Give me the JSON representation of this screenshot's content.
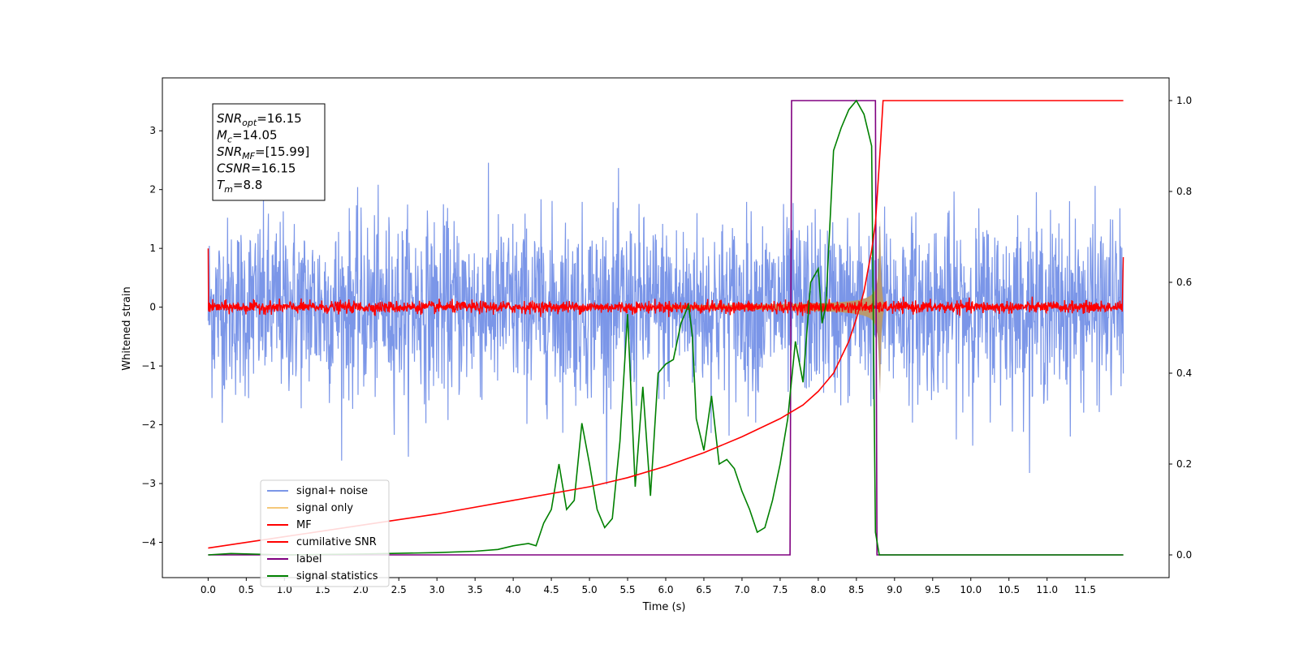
{
  "chart_data": {
    "type": "line",
    "xlabel": "Time (s)",
    "ylabel": "Whitened strain",
    "xlim": [
      -0.6,
      12.6
    ],
    "ylim_left": [
      -4.6,
      3.9
    ],
    "ylim_right": [
      -0.05,
      1.05
    ],
    "xticks": [
      "0.0",
      "0.5",
      "1.0",
      "1.5",
      "2.0",
      "2.5",
      "3.0",
      "3.5",
      "4.0",
      "4.5",
      "5.0",
      "5.5",
      "6.0",
      "6.5",
      "7.0",
      "7.5",
      "8.0",
      "8.5",
      "9.0",
      "9.5",
      "10.0",
      "10.5",
      "11.0",
      "11.5"
    ],
    "yticks_left": [
      "3",
      "2",
      "1",
      "0",
      "−1",
      "−2",
      "−3",
      "−4"
    ],
    "yticks_right": [
      "1.0",
      "0.8",
      "0.6",
      "0.4",
      "0.2",
      "0.0"
    ],
    "legend_placement": "lower-left",
    "annotation": {
      "lines": [
        {
          "sym": "SNR",
          "sub": "opt",
          "val": "=16.15"
        },
        {
          "sym": "M",
          "sub": "c",
          "val": "=14.05"
        },
        {
          "sym": "SNR",
          "sub": "MF",
          "val": "=[15.99]"
        },
        {
          "sym": "CSNR",
          "sub": "",
          "val": "=16.15"
        },
        {
          "sym": "T",
          "sub": "m",
          "val": "=8.8"
        }
      ]
    },
    "series": [
      {
        "name": "signal+ noise",
        "color": "#7b96e8",
        "axis": "left",
        "kind": "noise",
        "noise_std": 0.75,
        "t_range": [
          0,
          12
        ]
      },
      {
        "name": "signal only",
        "color": "#f5c87a",
        "axis": "left",
        "kind": "chirp",
        "merger_time": 8.8,
        "peak_amplitude": 2.7
      },
      {
        "name": "MF",
        "color": "#ff0000",
        "axis": "left",
        "kind": "noise",
        "noise_std": 0.05,
        "edge_values": [
          1.0,
          0.85
        ]
      },
      {
        "name": "cumilative SNR",
        "color": "#ff0000",
        "axis": "right",
        "x": [
          0.0,
          1.0,
          2.0,
          3.0,
          4.0,
          5.0,
          5.5,
          6.0,
          6.5,
          7.0,
          7.5,
          7.8,
          8.0,
          8.2,
          8.4,
          8.5,
          8.6,
          8.7,
          8.75,
          8.8,
          8.85,
          12.0
        ],
        "values": [
          0.015,
          0.04,
          0.065,
          0.09,
          0.12,
          0.15,
          0.17,
          0.195,
          0.225,
          0.26,
          0.3,
          0.33,
          0.36,
          0.4,
          0.47,
          0.52,
          0.58,
          0.67,
          0.73,
          0.86,
          1.0,
          1.0
        ]
      },
      {
        "name": "label",
        "color": "#800080",
        "axis": "right",
        "x": [
          0.0,
          7.63,
          7.65,
          8.75,
          8.77,
          12.0
        ],
        "values": [
          0.0,
          0.0,
          1.0,
          1.0,
          0.0,
          0.0
        ]
      },
      {
        "name": "signal statistics",
        "color": "#008000",
        "axis": "right",
        "x": [
          0.0,
          0.3,
          1.0,
          2.0,
          3.0,
          3.5,
          3.8,
          4.0,
          4.2,
          4.3,
          4.4,
          4.5,
          4.6,
          4.7,
          4.8,
          4.9,
          5.0,
          5.1,
          5.2,
          5.3,
          5.4,
          5.5,
          5.6,
          5.7,
          5.8,
          5.9,
          6.0,
          6.1,
          6.2,
          6.3,
          6.35,
          6.4,
          6.5,
          6.6,
          6.7,
          6.8,
          6.9,
          7.0,
          7.1,
          7.2,
          7.3,
          7.4,
          7.5,
          7.6,
          7.7,
          7.8,
          7.9,
          8.0,
          8.05,
          8.1,
          8.2,
          8.3,
          8.4,
          8.5,
          8.6,
          8.7,
          8.75,
          8.8,
          8.9,
          12.0
        ],
        "values": [
          0.0,
          0.003,
          0.0,
          0.002,
          0.005,
          0.008,
          0.012,
          0.02,
          0.025,
          0.02,
          0.07,
          0.1,
          0.2,
          0.1,
          0.12,
          0.29,
          0.2,
          0.1,
          0.06,
          0.08,
          0.25,
          0.53,
          0.15,
          0.37,
          0.13,
          0.4,
          0.42,
          0.43,
          0.51,
          0.55,
          0.48,
          0.3,
          0.23,
          0.35,
          0.2,
          0.21,
          0.19,
          0.14,
          0.1,
          0.05,
          0.06,
          0.12,
          0.2,
          0.3,
          0.47,
          0.38,
          0.6,
          0.63,
          0.51,
          0.55,
          0.89,
          0.94,
          0.98,
          1.0,
          0.97,
          0.9,
          0.05,
          0.0,
          0.0,
          0.0
        ]
      }
    ]
  }
}
